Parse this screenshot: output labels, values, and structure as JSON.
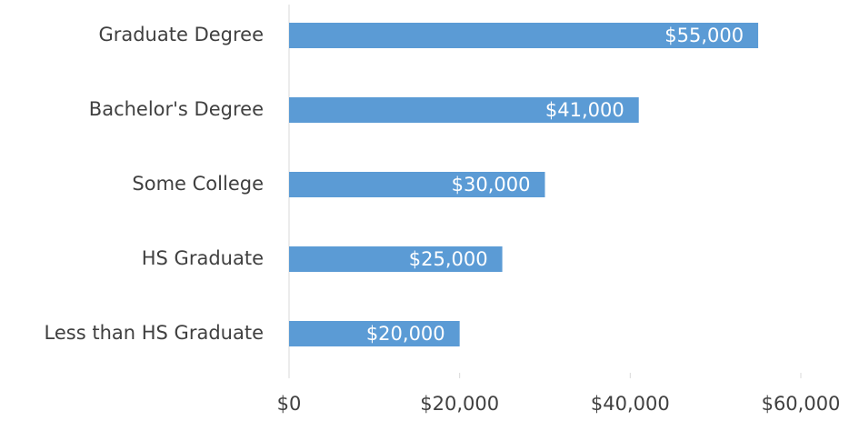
{
  "chart_data": {
    "type": "bar",
    "orientation": "horizontal",
    "categories": [
      "Graduate Degree",
      "Bachelor's Degree",
      "Some College",
      "HS Graduate",
      "Less than HS Graduate"
    ],
    "values": [
      55000,
      41000,
      30000,
      25000,
      20000
    ],
    "value_labels": [
      "$55,000",
      "$41,000",
      "$30,000",
      "$25,000",
      "$20,000"
    ],
    "color": "#5b9bd5",
    "xlim": [
      0,
      60000
    ],
    "xticks": [
      {
        "value": 0,
        "label": "$0"
      },
      {
        "value": 20000,
        "label": "$20,000"
      },
      {
        "value": 40000,
        "label": "$40,000"
      },
      {
        "value": 60000,
        "label": "$60,000"
      }
    ],
    "grid": false
  }
}
